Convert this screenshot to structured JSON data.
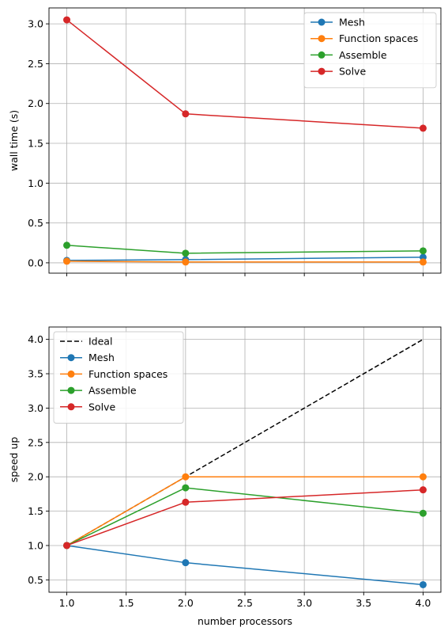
{
  "chart_data": [
    {
      "type": "line",
      "x": [
        1.0,
        2.0,
        4.0
      ],
      "xlim": [
        0.85,
        4.15
      ],
      "ylim": [
        -0.13,
        3.2
      ],
      "xticks": [
        1.0,
        1.5,
        2.0,
        2.5,
        3.0,
        3.5,
        4.0
      ],
      "yticks": [
        0.0,
        0.5,
        1.0,
        1.5,
        2.0,
        2.5,
        3.0
      ],
      "ytick_labels": [
        "0.0",
        "0.5",
        "1.0",
        "1.5",
        "2.0",
        "2.5",
        "3.0"
      ],
      "show_xtick_labels": false,
      "xlabel": "",
      "ylabel": "wall time (s)",
      "grid": true,
      "legend_placement": "upper right",
      "series": [
        {
          "name": "Mesh",
          "color": "#1f77b4",
          "marker": "circle",
          "style": "solid",
          "values": [
            0.03,
            0.04,
            0.07
          ]
        },
        {
          "name": "Function spaces",
          "color": "#ff7f0e",
          "marker": "circle",
          "style": "solid",
          "values": [
            0.02,
            0.01,
            0.01
          ]
        },
        {
          "name": "Assemble",
          "color": "#2ca02c",
          "marker": "circle",
          "style": "solid",
          "values": [
            0.22,
            0.12,
            0.15
          ]
        },
        {
          "name": "Solve",
          "color": "#d62728",
          "marker": "circle",
          "style": "solid",
          "values": [
            3.05,
            1.87,
            1.69
          ]
        }
      ]
    },
    {
      "type": "line",
      "x": [
        1.0,
        2.0,
        4.0
      ],
      "xlim": [
        0.85,
        4.15
      ],
      "ylim": [
        0.32,
        4.18
      ],
      "xticks": [
        1.0,
        1.5,
        2.0,
        2.5,
        3.0,
        3.5,
        4.0
      ],
      "xtick_labels": [
        "1.0",
        "1.5",
        "2.0",
        "2.5",
        "3.0",
        "3.5",
        "4.0"
      ],
      "yticks": [
        0.5,
        1.0,
        1.5,
        2.0,
        2.5,
        3.0,
        3.5,
        4.0
      ],
      "ytick_labels": [
        "0.5",
        "1.0",
        "1.5",
        "2.0",
        "2.5",
        "3.0",
        "3.5",
        "4.0"
      ],
      "show_xtick_labels": true,
      "xlabel": "number processors",
      "ylabel": "speed up",
      "grid": true,
      "legend_placement": "upper left",
      "series": [
        {
          "name": "Ideal",
          "color": "#000000",
          "marker": "none",
          "style": "dashed",
          "values": [
            1.0,
            2.0,
            4.0
          ]
        },
        {
          "name": "Mesh",
          "color": "#1f77b4",
          "marker": "circle",
          "style": "solid",
          "values": [
            1.0,
            0.75,
            0.43
          ]
        },
        {
          "name": "Function spaces",
          "color": "#ff7f0e",
          "marker": "circle",
          "style": "solid",
          "values": [
            1.0,
            2.0,
            2.0
          ]
        },
        {
          "name": "Assemble",
          "color": "#2ca02c",
          "marker": "circle",
          "style": "solid",
          "values": [
            1.0,
            1.84,
            1.47
          ]
        },
        {
          "name": "Solve",
          "color": "#d62728",
          "marker": "circle",
          "style": "solid",
          "values": [
            1.0,
            1.63,
            1.81
          ]
        }
      ]
    }
  ]
}
